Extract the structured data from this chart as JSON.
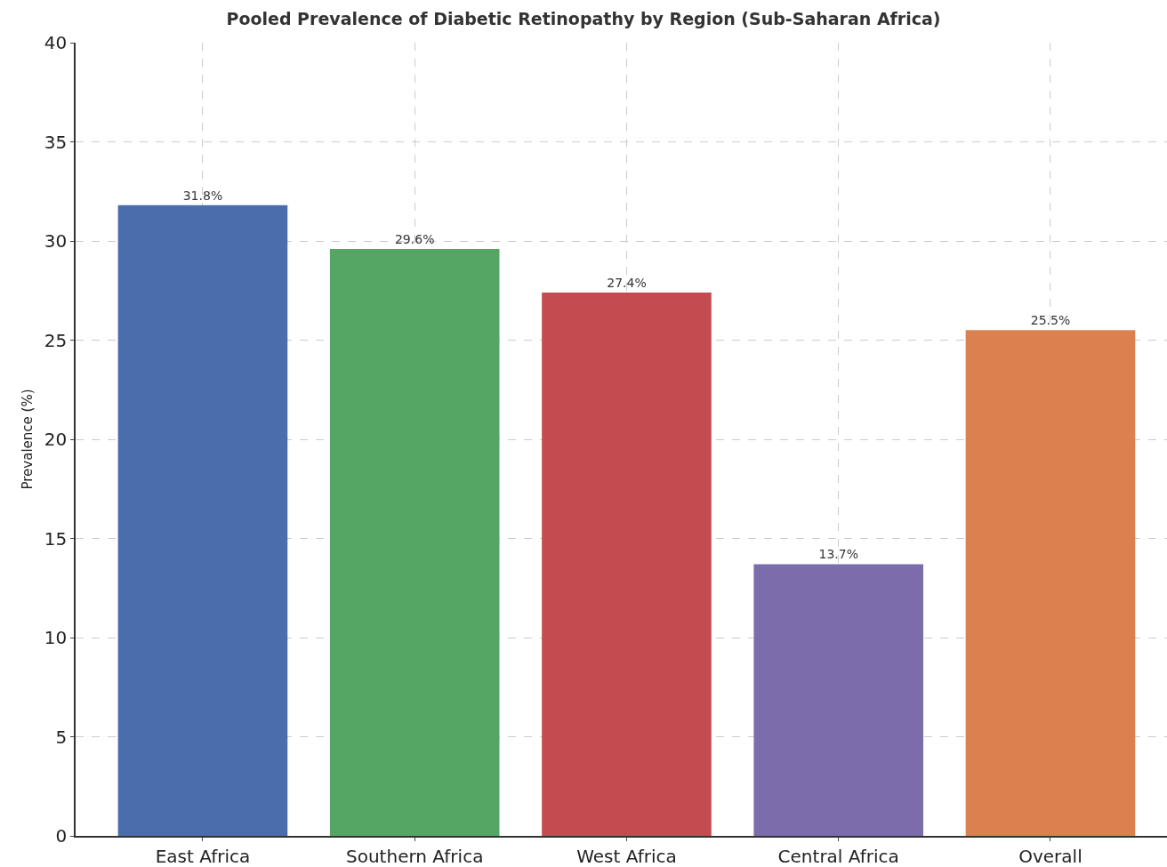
{
  "chart_data": {
    "type": "bar",
    "title": "Pooled Prevalence of Diabetic Retinopathy by Region (Sub-Saharan Africa)",
    "ylabel": "Prevalence (%)",
    "categories": [
      "East Africa",
      "Southern Africa",
      "West Africa",
      "Central Africa",
      "Overall"
    ],
    "values": [
      31.8,
      29.6,
      27.4,
      13.7,
      25.5
    ],
    "colors": [
      "#4a6dab",
      "#55a664",
      "#c44b4f",
      "#7d6cab",
      "#db814f"
    ],
    "value_labels": [
      "31.8%",
      "29.6%",
      "27.4%",
      "13.7%",
      "25.5%"
    ],
    "ylim": [
      0,
      40
    ],
    "yticks": [
      0,
      5,
      10,
      15,
      20,
      25,
      30,
      35,
      40
    ],
    "grid": true
  }
}
